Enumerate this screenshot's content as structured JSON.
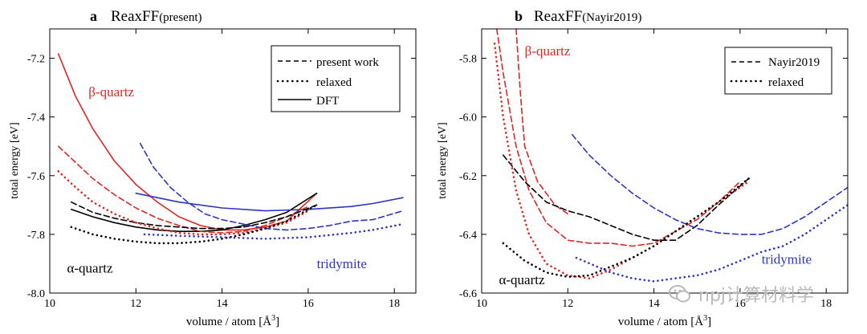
{
  "chart_data": [
    {
      "type": "line",
      "panel_letter": "a",
      "title_main": "ReaxFF",
      "title_sub": "(present)",
      "xlabel": "volume / atom [Å³]",
      "ylabel": "total energy [eV]",
      "xlim": [
        10,
        18.5
      ],
      "ylim": [
        -8.0,
        -7.1
      ],
      "xticks": [
        10,
        12,
        14,
        16,
        18
      ],
      "xtick_labels": [
        "10",
        "12",
        "14",
        "16",
        "18"
      ],
      "yticks": [
        -8.0,
        -7.8,
        -7.6,
        -7.4,
        -7.2
      ],
      "ytick_labels": [
        "-8.0",
        "-7.8",
        "-7.6",
        "-7.4",
        "-7.2"
      ],
      "legend_position": "top-right",
      "legend": [
        {
          "label": "present work",
          "dash": "dashed"
        },
        {
          "label": "relaxed",
          "dash": "dotted"
        },
        {
          "label": "DFT",
          "dash": "solid"
        }
      ],
      "annotations": [
        {
          "text": "β-quartz",
          "x": 10.9,
          "y": -7.33,
          "color": "#e0261f"
        },
        {
          "text": "α-quartz",
          "x": 10.4,
          "y": -7.93,
          "color": "#000000"
        },
        {
          "text": "tridymite",
          "x": 16.2,
          "y": -7.915,
          "color": "#2a35c8"
        }
      ],
      "series": [
        {
          "color": "#e0261f",
          "dash": "solid",
          "points": [
            [
              10.2,
              -7.185
            ],
            [
              10.6,
              -7.33
            ],
            [
              11.0,
              -7.44
            ],
            [
              11.5,
              -7.55
            ],
            [
              12.0,
              -7.63
            ],
            [
              12.5,
              -7.69
            ],
            [
              13.0,
              -7.74
            ],
            [
              13.5,
              -7.77
            ],
            [
              14.0,
              -7.785
            ],
            [
              14.5,
              -7.785
            ],
            [
              15.0,
              -7.775
            ],
            [
              15.5,
              -7.755
            ],
            [
              16.2,
              -7.66
            ]
          ]
        },
        {
          "color": "#000000",
          "dash": "solid",
          "points": [
            [
              10.5,
              -7.715
            ],
            [
              11.0,
              -7.74
            ],
            [
              11.5,
              -7.76
            ],
            [
              12.0,
              -7.775
            ],
            [
              12.5,
              -7.785
            ],
            [
              13.0,
              -7.79
            ],
            [
              13.5,
              -7.79
            ],
            [
              14.0,
              -7.785
            ],
            [
              14.5,
              -7.77
            ],
            [
              15.0,
              -7.75
            ],
            [
              15.5,
              -7.725
            ],
            [
              16.2,
              -7.66
            ]
          ]
        },
        {
          "color": "#2a35c8",
          "dash": "solid",
          "points": [
            [
              12.0,
              -7.66
            ],
            [
              13.0,
              -7.69
            ],
            [
              14.0,
              -7.71
            ],
            [
              15.0,
              -7.72
            ],
            [
              16.0,
              -7.715
            ],
            [
              17.0,
              -7.705
            ],
            [
              17.5,
              -7.695
            ],
            [
              18.2,
              -7.675
            ]
          ]
        },
        {
          "color": "#e0261f",
          "dash": "dashed",
          "points": [
            [
              10.2,
              -7.5
            ],
            [
              10.6,
              -7.555
            ],
            [
              11.0,
              -7.61
            ],
            [
              11.5,
              -7.665
            ],
            [
              12.0,
              -7.71
            ],
            [
              12.5,
              -7.745
            ],
            [
              13.0,
              -7.77
            ],
            [
              13.5,
              -7.79
            ],
            [
              14.0,
              -7.795
            ],
            [
              14.5,
              -7.79
            ],
            [
              15.0,
              -7.77
            ],
            [
              15.5,
              -7.74
            ],
            [
              16.0,
              -7.705
            ]
          ]
        },
        {
          "color": "#000000",
          "dash": "dashed",
          "points": [
            [
              10.5,
              -7.69
            ],
            [
              11.0,
              -7.725
            ],
            [
              11.5,
              -7.745
            ],
            [
              12.0,
              -7.76
            ],
            [
              12.5,
              -7.77
            ],
            [
              13.0,
              -7.775
            ],
            [
              13.5,
              -7.78
            ],
            [
              14.0,
              -7.78
            ],
            [
              14.5,
              -7.775
            ],
            [
              15.0,
              -7.76
            ],
            [
              15.5,
              -7.74
            ],
            [
              16.2,
              -7.7
            ]
          ]
        },
        {
          "color": "#2a35c8",
          "dash": "dashed",
          "points": [
            [
              12.1,
              -7.49
            ],
            [
              12.4,
              -7.57
            ],
            [
              12.8,
              -7.64
            ],
            [
              13.2,
              -7.69
            ],
            [
              13.6,
              -7.73
            ],
            [
              14.0,
              -7.75
            ],
            [
              14.5,
              -7.765
            ],
            [
              15.0,
              -7.78
            ],
            [
              15.5,
              -7.785
            ],
            [
              16.0,
              -7.78
            ],
            [
              16.5,
              -7.77
            ],
            [
              17.0,
              -7.755
            ],
            [
              17.5,
              -7.75
            ],
            [
              18.2,
              -7.72
            ]
          ]
        },
        {
          "color": "#e0261f",
          "dash": "dotted",
          "points": [
            [
              10.2,
              -7.585
            ],
            [
              10.6,
              -7.64
            ],
            [
              11.0,
              -7.69
            ],
            [
              11.5,
              -7.73
            ],
            [
              12.0,
              -7.76
            ],
            [
              12.5,
              -7.78
            ],
            [
              13.0,
              -7.795
            ],
            [
              13.5,
              -7.8
            ],
            [
              14.0,
              -7.8
            ],
            [
              14.5,
              -7.795
            ],
            [
              15.0,
              -7.78
            ],
            [
              15.5,
              -7.76
            ],
            [
              16.0,
              -7.72
            ]
          ]
        },
        {
          "color": "#000000",
          "dash": "dotted",
          "points": [
            [
              10.5,
              -7.775
            ],
            [
              11.0,
              -7.8
            ],
            [
              11.5,
              -7.815
            ],
            [
              12.0,
              -7.825
            ],
            [
              12.5,
              -7.83
            ],
            [
              13.0,
              -7.83
            ],
            [
              13.5,
              -7.825
            ],
            [
              14.0,
              -7.815
            ],
            [
              14.5,
              -7.8
            ],
            [
              15.0,
              -7.78
            ],
            [
              15.5,
              -7.755
            ],
            [
              16.2,
              -7.7
            ]
          ]
        },
        {
          "color": "#2a35c8",
          "dash": "dotted",
          "points": [
            [
              12.2,
              -7.8
            ],
            [
              13.0,
              -7.805
            ],
            [
              14.0,
              -7.81
            ],
            [
              15.0,
              -7.815
            ],
            [
              16.0,
              -7.81
            ],
            [
              17.0,
              -7.795
            ],
            [
              17.5,
              -7.785
            ],
            [
              18.2,
              -7.765
            ]
          ]
        }
      ]
    },
    {
      "type": "line",
      "panel_letter": "b",
      "title_main": "ReaxFF",
      "title_sub": "(Nayir2019)",
      "xlabel": "volume / atom [Å³]",
      "ylabel": "total energy [eV]",
      "xlim": [
        10,
        18.5
      ],
      "ylim": [
        -6.6,
        -5.7
      ],
      "xticks": [
        10,
        12,
        14,
        16,
        18
      ],
      "xtick_labels": [
        "10",
        "12",
        "14",
        "16",
        "18"
      ],
      "yticks": [
        -6.6,
        -6.4,
        -6.2,
        -6.0,
        -5.8
      ],
      "ytick_labels": [
        "-6.6",
        "-6.4",
        "-6.2",
        "-6.0",
        "-5.8"
      ],
      "legend_position": "top-right",
      "legend": [
        {
          "label": "Nayir2019",
          "dash": "dashed"
        },
        {
          "label": "relaxed",
          "dash": "dotted"
        }
      ],
      "annotations": [
        {
          "text": "β-quartz",
          "x": 11.0,
          "y": -5.79,
          "color": "#e0261f"
        },
        {
          "text": "α-quartz",
          "x": 10.4,
          "y": -6.57,
          "color": "#000000"
        },
        {
          "text": "tridymite",
          "x": 16.5,
          "y": -6.5,
          "color": "#2a35c8"
        }
      ],
      "series": [
        {
          "color": "#e0261f",
          "dash": "dashed",
          "points": [
            [
              10.35,
              -5.7
            ],
            [
              10.5,
              -5.85
            ],
            [
              10.8,
              -6.1
            ],
            [
              11.1,
              -6.25
            ],
            [
              11.5,
              -6.36
            ],
            [
              12.0,
              -6.42
            ],
            [
              12.5,
              -6.43
            ],
            [
              13.0,
              -6.43
            ],
            [
              13.5,
              -6.44
            ],
            [
              14.0,
              -6.43
            ],
            [
              14.5,
              -6.39
            ],
            [
              15.0,
              -6.35
            ],
            [
              15.5,
              -6.29
            ],
            [
              16.0,
              -6.22
            ]
          ]
        },
        {
          "color": "#e0261f",
          "dash": "dashed",
          "points": [
            [
              10.8,
              -5.7
            ],
            [
              10.9,
              -5.92
            ],
            [
              11.0,
              -6.1
            ],
            [
              11.3,
              -6.22
            ],
            [
              11.7,
              -6.3
            ],
            [
              12.0,
              -6.33
            ]
          ]
        },
        {
          "color": "#000000",
          "dash": "dashed",
          "points": [
            [
              10.5,
              -6.13
            ],
            [
              11.0,
              -6.22
            ],
            [
              11.5,
              -6.29
            ],
            [
              12.0,
              -6.32
            ],
            [
              12.5,
              -6.34
            ],
            [
              13.0,
              -6.37
            ],
            [
              13.5,
              -6.4
            ],
            [
              14.0,
              -6.42
            ],
            [
              14.5,
              -6.42
            ],
            [
              15.0,
              -6.37
            ],
            [
              15.5,
              -6.3
            ],
            [
              16.2,
              -6.21
            ]
          ]
        },
        {
          "color": "#2a35c8",
          "dash": "dashed",
          "points": [
            [
              12.1,
              -6.06
            ],
            [
              12.5,
              -6.13
            ],
            [
              13.0,
              -6.2
            ],
            [
              13.5,
              -6.26
            ],
            [
              14.0,
              -6.31
            ],
            [
              14.5,
              -6.35
            ],
            [
              15.0,
              -6.38
            ],
            [
              15.5,
              -6.395
            ],
            [
              16.0,
              -6.4
            ],
            [
              16.5,
              -6.4
            ],
            [
              17.0,
              -6.38
            ],
            [
              17.5,
              -6.34
            ],
            [
              18.0,
              -6.29
            ],
            [
              18.5,
              -6.24
            ]
          ]
        },
        {
          "color": "#e0261f",
          "dash": "dotted",
          "points": [
            [
              10.3,
              -5.75
            ],
            [
              10.5,
              -6.0
            ],
            [
              10.8,
              -6.25
            ],
            [
              11.1,
              -6.4
            ],
            [
              11.5,
              -6.5
            ],
            [
              12.0,
              -6.54
            ],
            [
              12.5,
              -6.55
            ],
            [
              13.0,
              -6.52
            ],
            [
              13.5,
              -6.48
            ],
            [
              14.0,
              -6.44
            ],
            [
              14.5,
              -6.39
            ],
            [
              15.0,
              -6.34
            ],
            [
              15.5,
              -6.29
            ],
            [
              16.2,
              -6.22
            ]
          ]
        },
        {
          "color": "#000000",
          "dash": "dotted",
          "points": [
            [
              10.5,
              -6.43
            ],
            [
              11.0,
              -6.49
            ],
            [
              11.5,
              -6.53
            ],
            [
              12.0,
              -6.545
            ],
            [
              12.5,
              -6.54
            ],
            [
              13.0,
              -6.51
            ],
            [
              13.5,
              -6.48
            ],
            [
              14.0,
              -6.44
            ],
            [
              14.5,
              -6.39
            ],
            [
              15.0,
              -6.34
            ],
            [
              15.5,
              -6.29
            ],
            [
              16.2,
              -6.21
            ]
          ]
        },
        {
          "color": "#2a35c8",
          "dash": "dotted",
          "points": [
            [
              12.2,
              -6.48
            ],
            [
              13.0,
              -6.53
            ],
            [
              13.5,
              -6.55
            ],
            [
              14.0,
              -6.56
            ],
            [
              14.5,
              -6.55
            ],
            [
              15.0,
              -6.54
            ],
            [
              15.5,
              -6.52
            ],
            [
              16.0,
              -6.49
            ],
            [
              16.5,
              -6.46
            ],
            [
              17.0,
              -6.44
            ],
            [
              17.5,
              -6.4
            ],
            [
              18.0,
              -6.35
            ],
            [
              18.5,
              -6.3
            ]
          ]
        }
      ]
    }
  ],
  "watermark": {
    "text": "npj计算材料学",
    "icon": "wechat-bubble-icon"
  }
}
